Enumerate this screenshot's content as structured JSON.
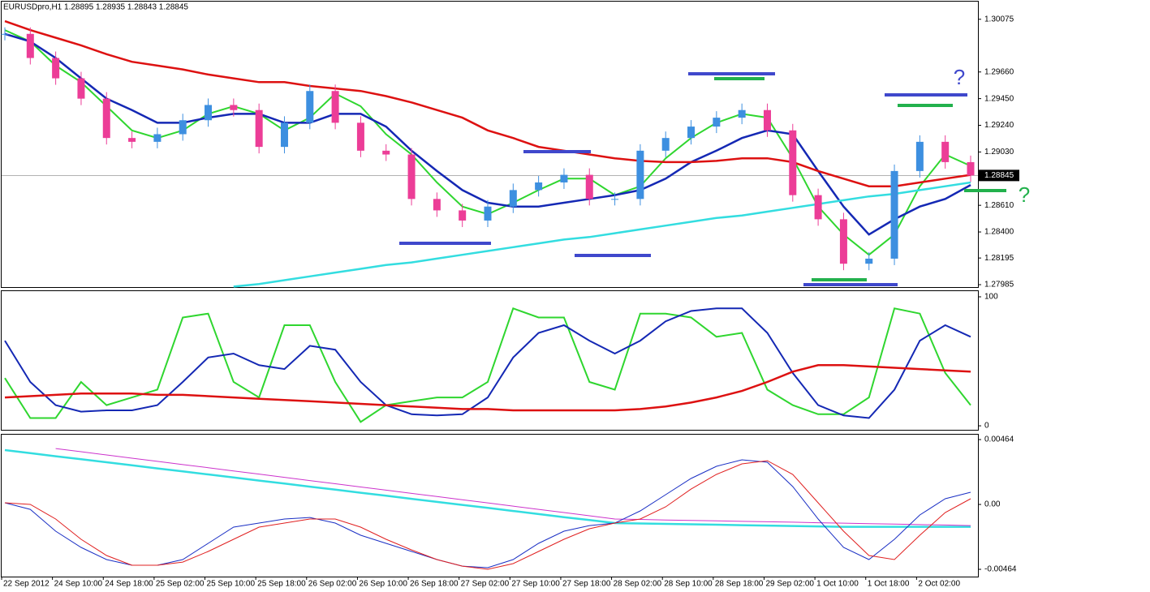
{
  "chart_data": [
    {
      "type": "candlestick",
      "title": "EURUSDpro,H1  1.28895 1.28935 1.28843 1.28845",
      "ylim": [
        1.27966,
        1.30214
      ],
      "yticks": [
        1.30075,
        {
          "value": 1.2966,
          "label": "1.29660"
        },
        {
          "value": 1.2945,
          "label": "1.29450"
        },
        {
          "value": 1.2924,
          "label": "1.29240"
        },
        {
          "value": 1.2903,
          "label": "1.29030"
        },
        {
          "value": 1.2861,
          "label": "1.28610"
        },
        {
          "value": 1.284,
          "label": "1.28400"
        },
        1.28195,
        1.27985
      ],
      "last_price": 1.28845,
      "up_color": "#3d8fe0",
      "down_color": "#ec3d97",
      "close": [
        1.2996,
        1.2977,
        1.2961,
        1.2945,
        1.2914,
        1.2911,
        1.2917,
        1.2928,
        1.294,
        1.2936,
        1.2907,
        1.2926,
        1.2951,
        1.2926,
        1.2904,
        1.2901,
        1.2866,
        1.2857,
        1.2849,
        1.286,
        1.2873,
        1.2879,
        1.2885,
        1.2866,
        1.2866,
        1.2904,
        1.2914,
        1.2923,
        1.293,
        1.2936,
        1.292,
        1.2869,
        1.285,
        1.2815,
        1.2819,
        1.2888,
        1.2911,
        1.2895,
        1.28845
      ],
      "series": [
        {
          "color": "#2fd62f",
          "width": 2,
          "values": [
            1.2999,
            1.299,
            1.2971,
            1.2958,
            1.2939,
            1.292,
            1.2914,
            1.292,
            1.2933,
            1.2939,
            1.2933,
            1.292,
            1.293,
            1.2949,
            1.2939,
            1.2917,
            1.2901,
            1.2879,
            1.286,
            1.2854,
            1.2863,
            1.2873,
            1.2882,
            1.2882,
            1.2869,
            1.2876,
            1.2898,
            1.2914,
            1.2926,
            1.2933,
            1.293,
            1.2898,
            1.286,
            1.2838,
            1.2822,
            1.2838,
            1.2876,
            1.2901,
            1.2892
          ]
        },
        {
          "color": "#1428b4",
          "width": 2.5,
          "values": [
            1.2996,
            1.299,
            1.2977,
            1.2961,
            1.2945,
            1.2936,
            1.2926,
            1.2926,
            1.293,
            1.2933,
            1.2933,
            1.2926,
            1.2926,
            1.2933,
            1.2933,
            1.2923,
            1.2904,
            1.2888,
            1.2873,
            1.2863,
            1.286,
            1.286,
            1.2863,
            1.2866,
            1.2869,
            1.2873,
            1.2882,
            1.2895,
            1.2904,
            1.2914,
            1.292,
            1.2917,
            1.2888,
            1.286,
            1.2838,
            1.285,
            1.286,
            1.2866,
            1.2877
          ]
        },
        {
          "color": "#dd1111",
          "width": 2.5,
          "values": [
            1.3006,
            1.2999,
            1.2993,
            1.2987,
            1.298,
            1.2974,
            1.2971,
            1.2968,
            1.2964,
            1.2961,
            1.2958,
            1.2958,
            1.2955,
            1.2953,
            1.2951,
            1.2947,
            1.2942,
            1.2936,
            1.293,
            1.292,
            1.2914,
            1.2907,
            1.2904,
            1.2901,
            1.2898,
            1.2896,
            1.2895,
            1.2895,
            1.2896,
            1.2898,
            1.2898,
            1.2895,
            1.2888,
            1.2882,
            1.2876,
            1.2876,
            1.2879,
            1.2882,
            1.2885
          ]
        },
        {
          "color": "#33dde0",
          "width": 2.5,
          "values": [
            null,
            null,
            null,
            null,
            null,
            null,
            null,
            null,
            null,
            1.2797,
            1.2799,
            1.2802,
            1.2805,
            1.2808,
            1.2811,
            1.2814,
            1.2816,
            1.2819,
            1.2822,
            1.2825,
            1.2828,
            1.2831,
            1.2834,
            1.2836,
            1.2839,
            1.2842,
            1.2845,
            1.2848,
            1.2851,
            1.2853,
            1.2856,
            1.2859,
            1.2862,
            1.2865,
            1.2868,
            1.287,
            1.2873,
            1.2876,
            1.2879
          ]
        }
      ],
      "annotations": [
        {
          "text": "?",
          "color": "#3f48cc"
        },
        {
          "text": "?",
          "color": "#22b14c"
        }
      ]
    },
    {
      "type": "line",
      "ylim": [
        -3.1,
        104.4
      ],
      "yticks": [
        100,
        0
      ],
      "series": [
        {
          "color": "#2fd62f",
          "width": 2,
          "values": [
            37,
            6,
            6,
            34,
            16,
            22,
            28,
            84,
            87,
            34,
            22,
            78,
            78,
            34,
            3,
            16,
            19,
            22,
            22,
            34,
            91,
            84,
            84,
            34,
            28,
            87,
            87,
            84,
            69,
            72,
            28,
            16,
            9,
            9,
            22,
            91,
            87,
            41,
            16
          ]
        },
        {
          "color": "#1428b4",
          "width": 2,
          "values": [
            66,
            34,
            16,
            11,
            12,
            12,
            16,
            34,
            53,
            56,
            47,
            44,
            62,
            59,
            34,
            16,
            9,
            8,
            9,
            22,
            53,
            72,
            78,
            66,
            56,
            66,
            81,
            89,
            91,
            91,
            72,
            41,
            16,
            8,
            6,
            28,
            66,
            78,
            69
          ]
        },
        {
          "color": "#dd1111",
          "width": 2.5,
          "values": [
            22,
            23,
            24,
            25,
            25,
            25,
            24,
            24,
            23,
            22,
            21,
            20,
            19,
            18,
            17,
            16,
            15,
            14,
            13,
            13,
            12,
            12,
            12,
            12,
            12,
            13,
            15,
            18,
            22,
            27,
            34,
            42,
            47,
            47,
            46,
            45,
            44,
            43,
            42
          ]
        }
      ]
    },
    {
      "type": "line",
      "ylim": [
        -0.00516,
        0.00499
      ],
      "yticks": [
        0.00464,
        {
          "value": 0,
          "label": "0.00"
        },
        -0.00464
      ],
      "categories": [
        "22 Sep 2012",
        null,
        "24 Sep 10:00",
        null,
        "24 Sep 18:00",
        null,
        "25 Sep 02:00",
        null,
        "25 Sep 10:00",
        null,
        "25 Sep 18:00",
        null,
        "26 Sep 02:00",
        null,
        "26 Sep 10:00",
        null,
        "26 Sep 18:00",
        null,
        "27 Sep 02:00",
        null,
        "27 Sep 10:00",
        null,
        "27 Sep 18:00",
        null,
        "28 Sep 02:00",
        null,
        "28 Sep 10:00",
        null,
        "28 Sep 18:00",
        null,
        "29 Sep 02:00",
        null,
        "1 Oct 10:00",
        null,
        "1 Oct 18:00",
        null,
        "2 Oct 02:00",
        null,
        null
      ],
      "series": [
        {
          "color": "#33dde0",
          "width": 2.5,
          "values": [
            0.00389,
            0.00367,
            0.00345,
            0.00324,
            0.00302,
            0.0028,
            0.00258,
            0.00236,
            0.00215,
            0.00193,
            0.00171,
            0.00149,
            0.00127,
            0.00106,
            0.00084,
            0.00062,
            0.0004,
            0.00018,
            -3e-05,
            -0.00025,
            -0.00047,
            -0.00069,
            -0.00091,
            -0.00112,
            -0.00133,
            -0.00136,
            -0.00139,
            -0.00142,
            -0.00145,
            -0.00148,
            -0.00151,
            -0.00154,
            -0.00157,
            -0.0016,
            -0.0016,
            -0.0016,
            -0.0016,
            -0.0016,
            -0.0016
          ]
        },
        {
          "color": "#cc33cc",
          "width": 1,
          "values": [
            null,
            null,
            0.004,
            0.00377,
            0.00354,
            0.00331,
            0.00308,
            0.00285,
            0.00263,
            0.0024,
            0.00217,
            0.00194,
            0.00171,
            0.00148,
            0.00125,
            0.00102,
            0.00079,
            0.00057,
            0.00034,
            0.00011,
            -0.00012,
            -0.00035,
            -0.00058,
            -0.00081,
            -0.00104,
            -0.00107,
            -0.00111,
            -0.00114,
            -0.00117,
            -0.00121,
            -0.00124,
            -0.00127,
            -0.00131,
            -0.00134,
            -0.00137,
            -0.00141,
            -0.00144,
            -0.00147,
            -0.00151
          ]
        },
        {
          "color": "#1a2fc4",
          "width": 1,
          "values": [
            0.00012,
            -0.00035,
            -0.00191,
            -0.00307,
            -0.00394,
            -0.00435,
            -0.00435,
            -0.00394,
            -0.00278,
            -0.00162,
            -0.00133,
            -0.00104,
            -0.00093,
            -0.00133,
            -0.0022,
            -0.00278,
            -0.00336,
            -0.00394,
            -0.00441,
            -0.00452,
            -0.00394,
            -0.00278,
            -0.00191,
            -0.00151,
            -0.00133,
            -0.00046,
            0.0007,
            0.00186,
            0.00273,
            0.00319,
            0.00302,
            0.00128,
            -0.00104,
            -0.00307,
            -0.00394,
            -0.00249,
            -0.00075,
            0.00041,
            0.00087
          ]
        },
        {
          "color": "#e02020",
          "width": 1,
          "values": [
            0.00012,
            0,
            -0.00104,
            -0.00249,
            -0.00365,
            -0.00435,
            -0.00435,
            -0.00412,
            -0.00336,
            -0.00249,
            -0.00162,
            -0.00133,
            -0.00104,
            -0.00104,
            -0.00162,
            -0.00249,
            -0.00325,
            -0.00394,
            -0.00441,
            -0.00464,
            -0.00423,
            -0.00336,
            -0.00249,
            -0.00174,
            -0.00133,
            -0.00104,
            -0.00017,
            0.0011,
            0.00215,
            0.0029,
            0.00313,
            0.00215,
            0.00012,
            -0.00191,
            -0.00365,
            -0.00394,
            -0.0022,
            -0.00058,
            0.00041
          ]
        }
      ]
    }
  ]
}
